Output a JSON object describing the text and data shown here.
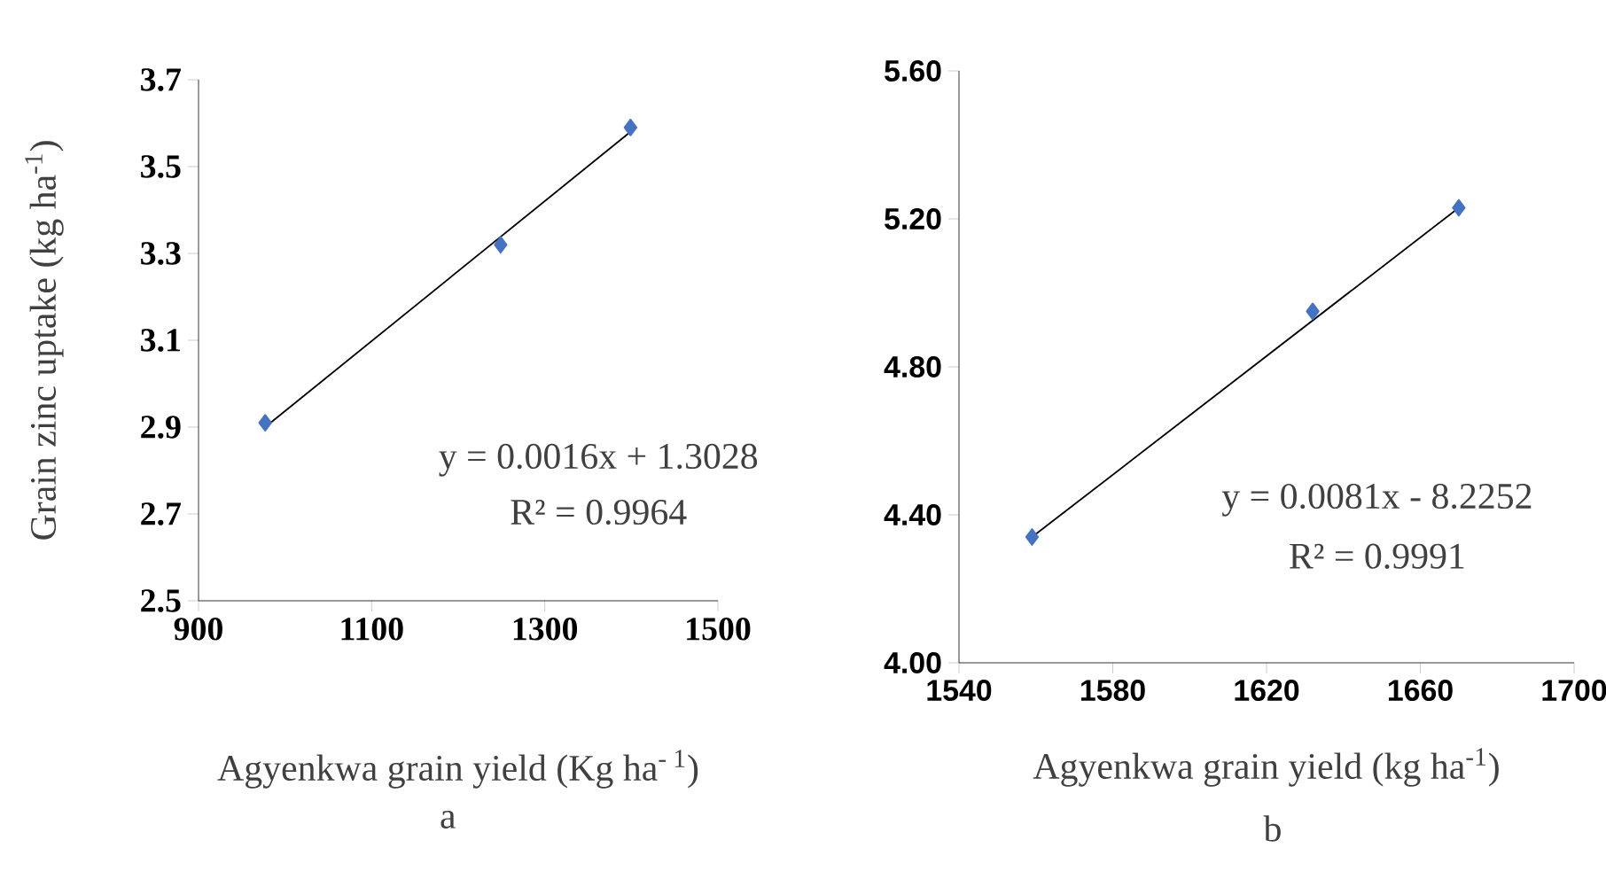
{
  "chart_data": [
    {
      "type": "scatter",
      "xlabel": "Agyenkwa grain yield (Kg ha$^{- 1}$)",
      "ylabel": "Grain zinc uptake (kg ha$^{-1}$)",
      "xlim": [
        900,
        1500
      ],
      "ylim": [
        2.5,
        3.7
      ],
      "xticks": [
        900,
        1100,
        1300,
        1500
      ],
      "yticks": [
        2.5,
        2.7,
        2.9,
        3.1,
        3.3,
        3.5,
        3.7
      ],
      "series": [
        {
          "marker": "diamond",
          "color": "#4472c4",
          "x": [
            977,
            1249,
            1399
          ],
          "values": [
            2.91,
            3.32,
            3.59
          ]
        },
        {
          "type": "line",
          "marker": "none",
          "color": "#000000",
          "x": [
            977,
            1399
          ],
          "values": [
            2.9,
            3.58
          ]
        }
      ],
      "annotations": [
        "y = 0.0016x + 1.3028",
        "R² = 0.9964",
        "a"
      ]
    },
    {
      "type": "scatter",
      "xlabel": "Agyenkwa grain yield (kg ha$^{-1}$)",
      "xlim": [
        1540,
        1700
      ],
      "ylim": [
        4.0,
        5.6
      ],
      "xticks": [
        1540,
        1580,
        1620,
        1660,
        1700
      ],
      "yticks": [
        {
          "value": 4.0,
          "label": "4.00"
        },
        {
          "value": 4.4,
          "label": "4.40"
        },
        {
          "value": 4.8,
          "label": "4.80"
        },
        {
          "value": 5.2,
          "label": "5.20"
        },
        {
          "value": 5.6,
          "label": "5.60"
        }
      ],
      "series": [
        {
          "marker": "diamond",
          "color": "#4472c4",
          "x": [
            1559,
            1632,
            1670
          ],
          "values": [
            4.34,
            4.95,
            5.23
          ]
        },
        {
          "type": "line",
          "marker": "none",
          "color": "#000000",
          "x": [
            1559,
            1670
          ],
          "values": [
            4.34,
            5.23
          ]
        }
      ],
      "annotations": [
        "y = 0.0081x - 8.2252",
        "R² = 0.9991",
        "b"
      ]
    }
  ]
}
